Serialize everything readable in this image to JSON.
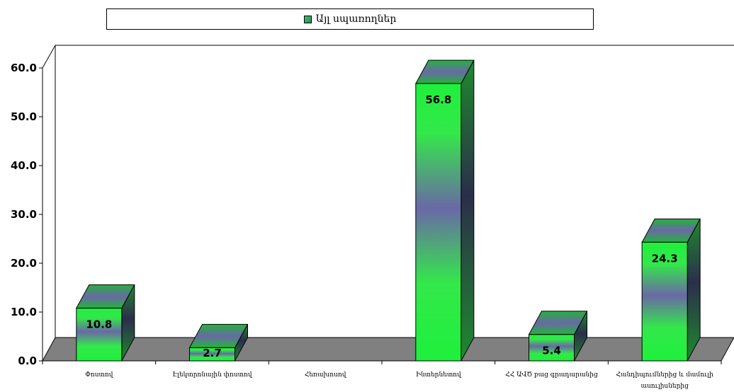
{
  "chart_data": {
    "type": "bar",
    "legend": {
      "position": "top",
      "entries": [
        "Այլ սպառողներ"
      ]
    },
    "categories": [
      "Փոստով",
      "Էլեկտրոնային փոստով",
      "Հեռախոսով",
      "Ինտերնետով",
      "ՀՀ ԱՎԾ բաց գրադարանից",
      [
        "Հանդիպումներից և մամուլի",
        "ասուլիսներից"
      ]
    ],
    "series": [
      {
        "name": "Այլ սպառողներ",
        "values": [
          10.8,
          2.7,
          null,
          56.8,
          5.4,
          24.3
        ]
      }
    ],
    "data_labels": [
      "10.8",
      "2.7",
      "",
      "56.8",
      "5.4",
      "24.3"
    ],
    "y_ticks": [
      "0.0",
      "10.0",
      "20.0",
      "30.0",
      "40.0",
      "50.0",
      "60.0"
    ],
    "ylim": [
      0,
      60
    ],
    "grid": false,
    "colors": {
      "bar_front": "#1ef03c",
      "bar_mid": "#6a68a6",
      "bar_side": "#1f7a2e",
      "floor": "#808080"
    }
  }
}
